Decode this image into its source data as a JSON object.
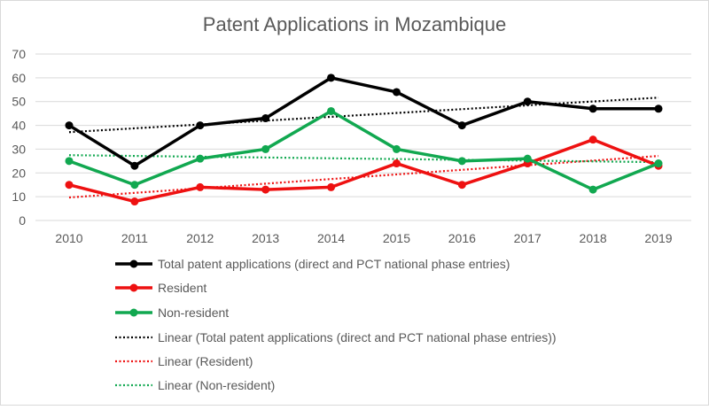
{
  "chart_data": {
    "type": "line",
    "title": "Patent Applications in Mozambique",
    "xlabel": "",
    "ylabel": "",
    "categories": [
      "2010",
      "2011",
      "2012",
      "2013",
      "2014",
      "2015",
      "2016",
      "2017",
      "2018",
      "2019"
    ],
    "ylim": [
      0,
      70
    ],
    "yticks": [
      "0",
      "10",
      "20",
      "30",
      "40",
      "50",
      "60",
      "70"
    ],
    "grid": true,
    "legend_position": "bottom",
    "series": [
      {
        "name": "Total  patent applications (direct and PCT national phase entries)",
        "color": "#000000",
        "values": [
          40,
          23,
          40,
          43,
          60,
          54,
          40,
          50,
          47,
          47
        ]
      },
      {
        "name": "Resident",
        "color": "#ee1111",
        "values": [
          15,
          8,
          14,
          13,
          14,
          24,
          15,
          24,
          34,
          23
        ]
      },
      {
        "name": "Non-resident",
        "color": "#11a850",
        "values": [
          25,
          15,
          26,
          30,
          46,
          30,
          25,
          26,
          13,
          24
        ]
      }
    ],
    "trendlines": [
      {
        "name": "Linear (Total  patent applications (direct and PCT national phase entries))",
        "type": "linear",
        "of": 0,
        "color": "#000000"
      },
      {
        "name": "Linear (Resident)",
        "type": "linear",
        "of": 1,
        "color": "#ee1111"
      },
      {
        "name": "Linear (Non-resident)",
        "type": "linear",
        "of": 2,
        "color": "#11a850"
      }
    ]
  }
}
